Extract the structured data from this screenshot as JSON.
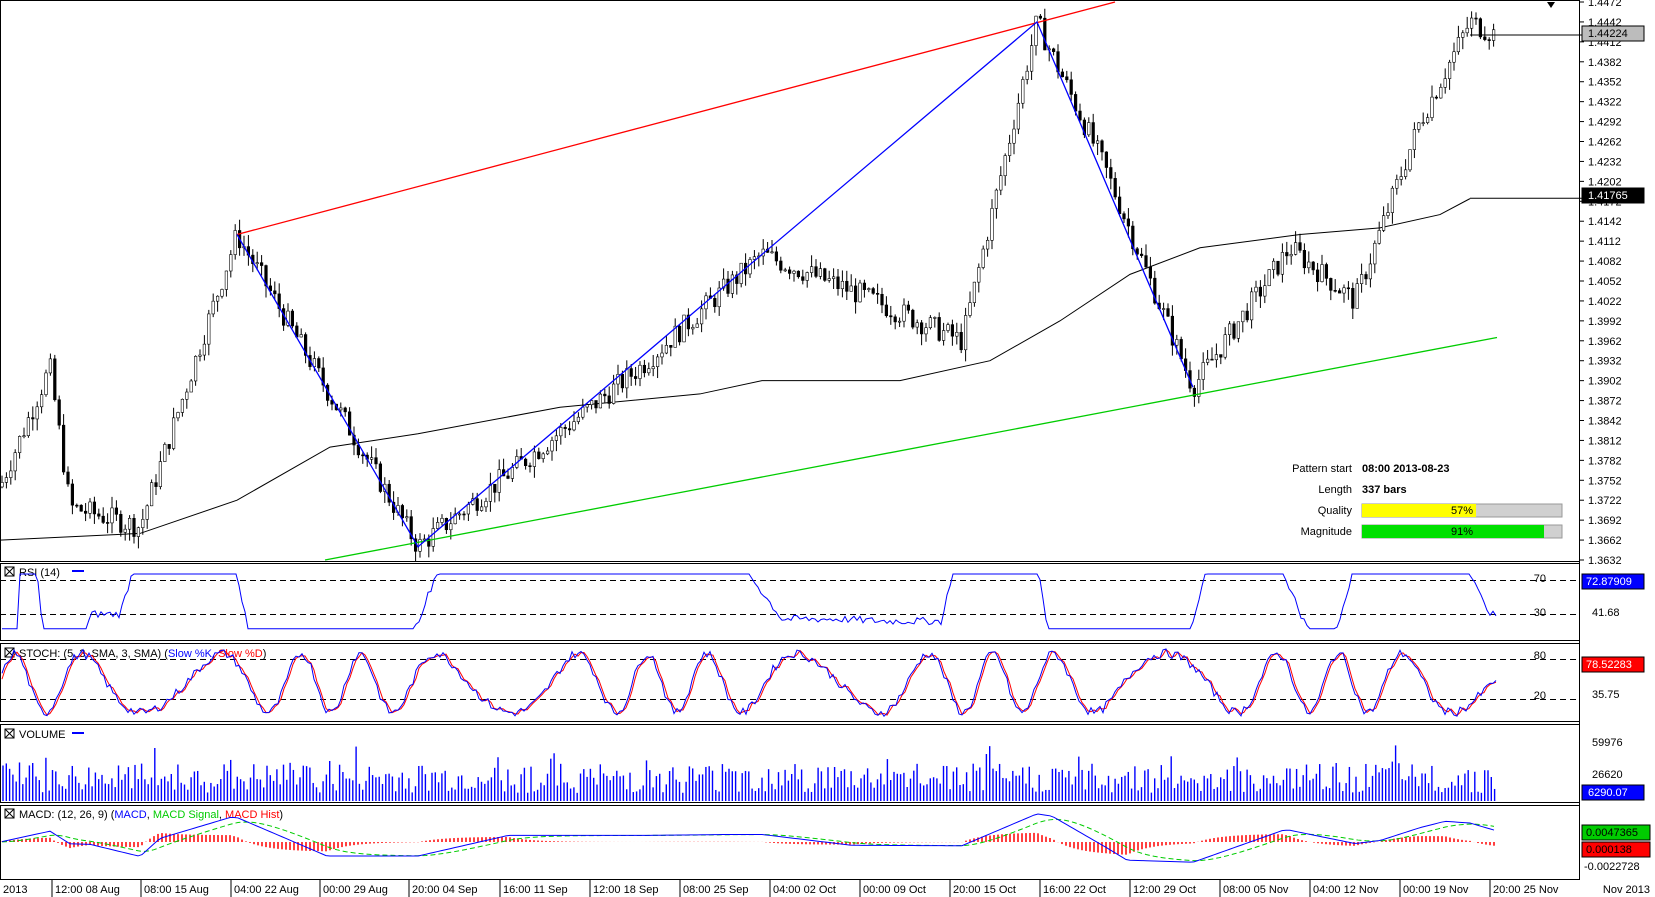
{
  "chart_data": {
    "type": "candlestick",
    "main": {
      "y_ticks": [
        "1.4472",
        "1.4442",
        "1.4412",
        "1.4382",
        "1.4352",
        "1.4322",
        "1.4292",
        "1.4262",
        "1.4232",
        "1.4202",
        "1.4172",
        "1.4142",
        "1.4112",
        "1.4082",
        "1.4052",
        "1.4022",
        "1.3992",
        "1.3962",
        "1.3932",
        "1.3902",
        "1.3872",
        "1.3842",
        "1.3812",
        "1.3782",
        "1.3752",
        "1.3722",
        "1.3692",
        "1.3662",
        "1.3632"
      ],
      "ylim": [
        1.3632,
        1.4472
      ],
      "price_tag": "1.44224",
      "price_value": 1.44224,
      "ma_tag": "1.41765",
      "ma_value": 1.41765,
      "pattern_info": {
        "start_label": "Pattern start",
        "start_value": "08:00 2013-08-23",
        "length_label": "Length",
        "length_value": "337 bars",
        "quality_label": "Quality",
        "quality_value": "57%",
        "quality_pct": 57,
        "magnitude_label": "Magnitude",
        "magnitude_value": "91%",
        "magnitude_pct": 91
      },
      "zigzag": [
        [
          237,
          1.4122
        ],
        [
          418,
          1.3652
        ],
        [
          762,
          1.4092
        ],
        [
          1037,
          1.4442
        ],
        [
          1193,
          1.3892
        ]
      ],
      "upper_channel": [
        [
          237,
          1.4122
        ],
        [
          1115,
          1.4472
        ]
      ],
      "lower_channel": [
        [
          325,
          1.3632
        ],
        [
          1497,
          1.3967
        ]
      ],
      "colors": {
        "up": "#ff0000",
        "down": "#00cc00",
        "zigzag": "#0000ff",
        "candle": "#000000",
        "ma": "#000000"
      }
    },
    "rsi": {
      "title": "RSI (14)",
      "levels": [
        "70",
        "30"
      ],
      "tick": "41.68",
      "tag": "72.87909",
      "ylim": [
        0,
        100
      ]
    },
    "stoch": {
      "title_prefix": "STOCH: (5, 3, SMA, 3, SMA) (",
      "k_label": "Slow %K",
      "sep": ", ",
      "d_label": "Slow %D",
      "title_suffix": ")",
      "levels": [
        "80",
        "20"
      ],
      "tick": "35.75",
      "tag": "78.52283",
      "ylim": [
        0,
        100
      ]
    },
    "volume": {
      "title": "VOLUME",
      "ticks": [
        "59976",
        "26620"
      ],
      "tag": "6290.07",
      "ylim": [
        0,
        80000
      ]
    },
    "macd": {
      "title_prefix": "MACD: (12, 26, 9) (",
      "macd_label": "MACD",
      "sep": ", ",
      "signal_label": "MACD Signal",
      "hist_label": "MACD Hist",
      "title_suffix": ")",
      "tag_macd": "0.0047365",
      "tag_hist": "0.000138",
      "tick": "-0.0022728"
    },
    "x_labels": [
      "2013",
      "12:00 08 Aug",
      "08:00 15 Aug",
      "04:00 22 Aug",
      "00:00 29 Aug",
      "20:00 04 Sep",
      "16:00 11 Sep",
      "12:00 18 Sep",
      "08:00 25 Sep",
      "04:00 02 Oct",
      "00:00 09 Oct",
      "20:00 15 Oct",
      "16:00 22 Oct",
      "12:00 29 Oct",
      "08:00 05 Nov",
      "04:00 12 Nov",
      "00:00 19 Nov",
      "20:00 25 Nov",
      "Nov 2013"
    ]
  }
}
